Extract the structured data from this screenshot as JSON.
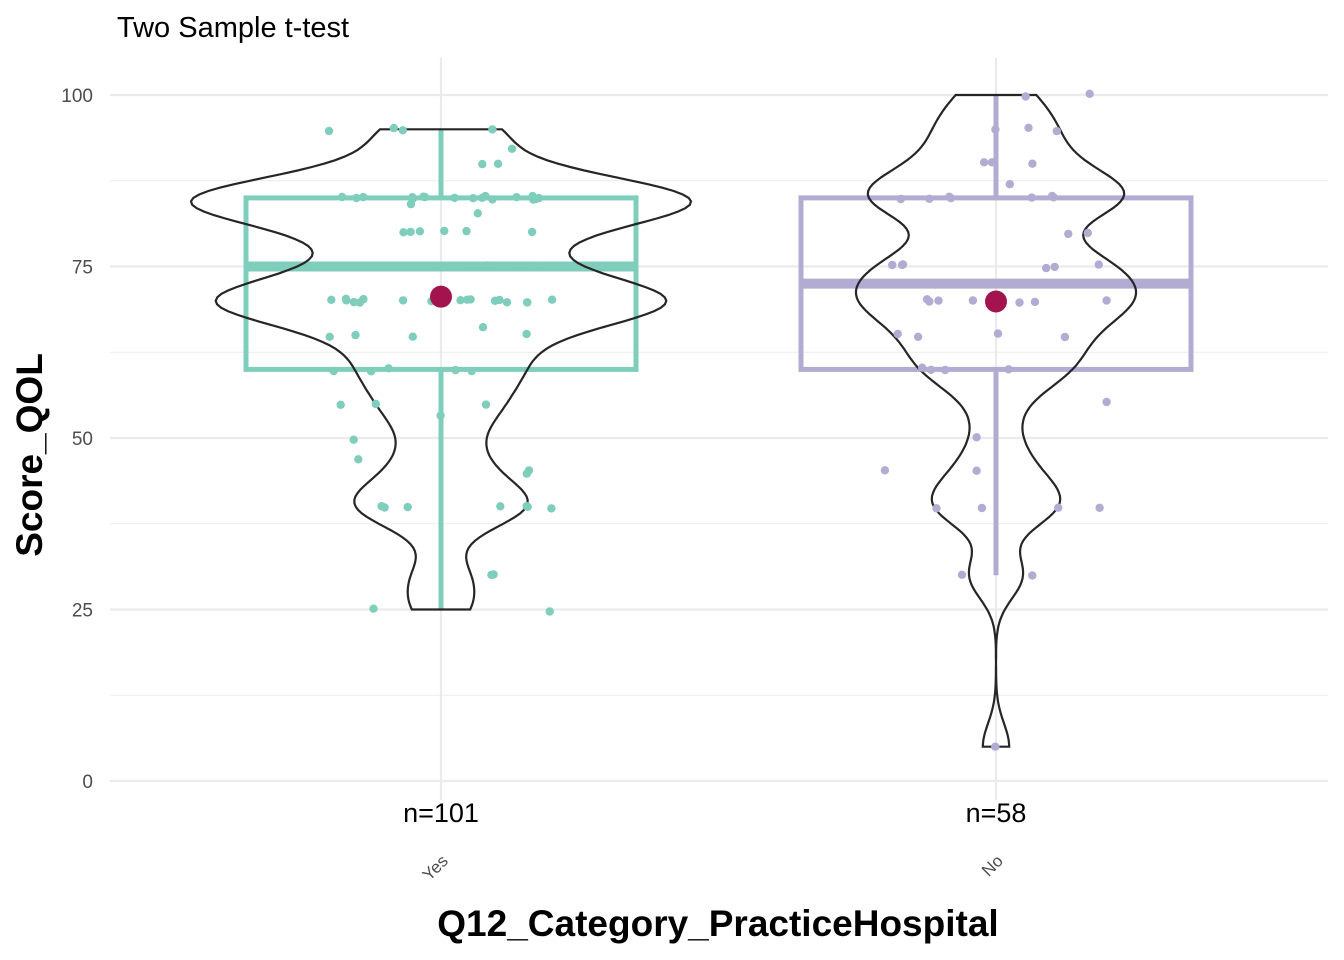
{
  "chart_data": {
    "type": "box_violin",
    "title": "Two Sample t-test",
    "xlabel": "Q12_Category_PracticeHospital",
    "ylabel": "Score_QOL",
    "ylim": [
      0,
      100
    ],
    "yticks": [
      0,
      25,
      50,
      75,
      100
    ],
    "grid": true,
    "mean_color": "#A3144F",
    "violin_color": "#262626",
    "groups": [
      {
        "name": "Yes",
        "n_label": "n=101",
        "color": "#7FCDBB",
        "box": {
          "whisker_low": 25,
          "q1": 60,
          "median": 75,
          "q3": 85,
          "whisker_high": 95
        },
        "mean": 70.6,
        "points": [
          95,
          95,
          95,
          95,
          90,
          90,
          92,
          85,
          85,
          85,
          85,
          85,
          85,
          85,
          85,
          85,
          85,
          85,
          85,
          85,
          85,
          85,
          85,
          85,
          85,
          84,
          83,
          80,
          80,
          80,
          80,
          80,
          80,
          75,
          75,
          75,
          75,
          75,
          70,
          70,
          70,
          70,
          70,
          70,
          70,
          70,
          70,
          70,
          70,
          70,
          70,
          70,
          70,
          70,
          70,
          66,
          65,
          65,
          65,
          65,
          60,
          60,
          60,
          60,
          60,
          55,
          55,
          55,
          53,
          50,
          47,
          45,
          45,
          40,
          40,
          40,
          40,
          40,
          40,
          40,
          30,
          30,
          25,
          25
        ]
      },
      {
        "name": "No",
        "n_label": "n=58",
        "color": "#B2ABD2",
        "box": {
          "whisker_low": 30,
          "q1": 60,
          "median": 72.5,
          "q3": 85,
          "whisker_high": 100
        },
        "mean": 69.9,
        "points": [
          100,
          100,
          95,
          95,
          95,
          90,
          90,
          90,
          87,
          85,
          85,
          85,
          85,
          85,
          85,
          85,
          80,
          80,
          75,
          75,
          75,
          75,
          75,
          75,
          70,
          70,
          70,
          70,
          70,
          70,
          70,
          65,
          65,
          65,
          65,
          60,
          60,
          60,
          60,
          55,
          50,
          45,
          45,
          40,
          40,
          40,
          40,
          30,
          30,
          5
        ]
      }
    ]
  }
}
